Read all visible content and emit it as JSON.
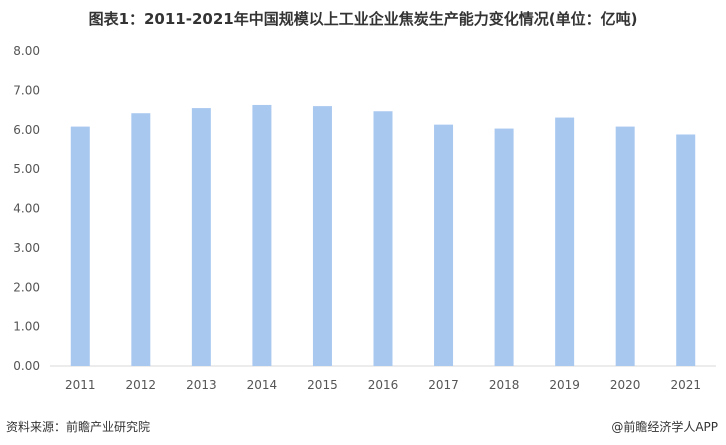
{
  "chart_data": {
    "type": "bar",
    "title": "图表1：2011-2021年中国规模以上工业企业焦炭生产能力变化情况(单位：亿吨)",
    "categories": [
      "2011",
      "2012",
      "2013",
      "2014",
      "2015",
      "2016",
      "2017",
      "2018",
      "2019",
      "2020",
      "2021"
    ],
    "series": [
      {
        "values": [
          6.08,
          6.42,
          6.55,
          6.63,
          6.6,
          6.47,
          6.13,
          6.03,
          6.31,
          6.08,
          5.88
        ]
      }
    ],
    "ylim": [
      0,
      8
    ],
    "yticks": [
      "0.00",
      "1.00",
      "2.00",
      "3.00",
      "4.00",
      "5.00",
      "6.00",
      "7.00",
      "8.00"
    ],
    "xlabel": "",
    "ylabel": "",
    "grid": false,
    "bar_color": "#a9c8f0"
  },
  "footer": {
    "source": "资料来源：前瞻产业研究院",
    "credit": "@前瞻经济学人APP"
  }
}
